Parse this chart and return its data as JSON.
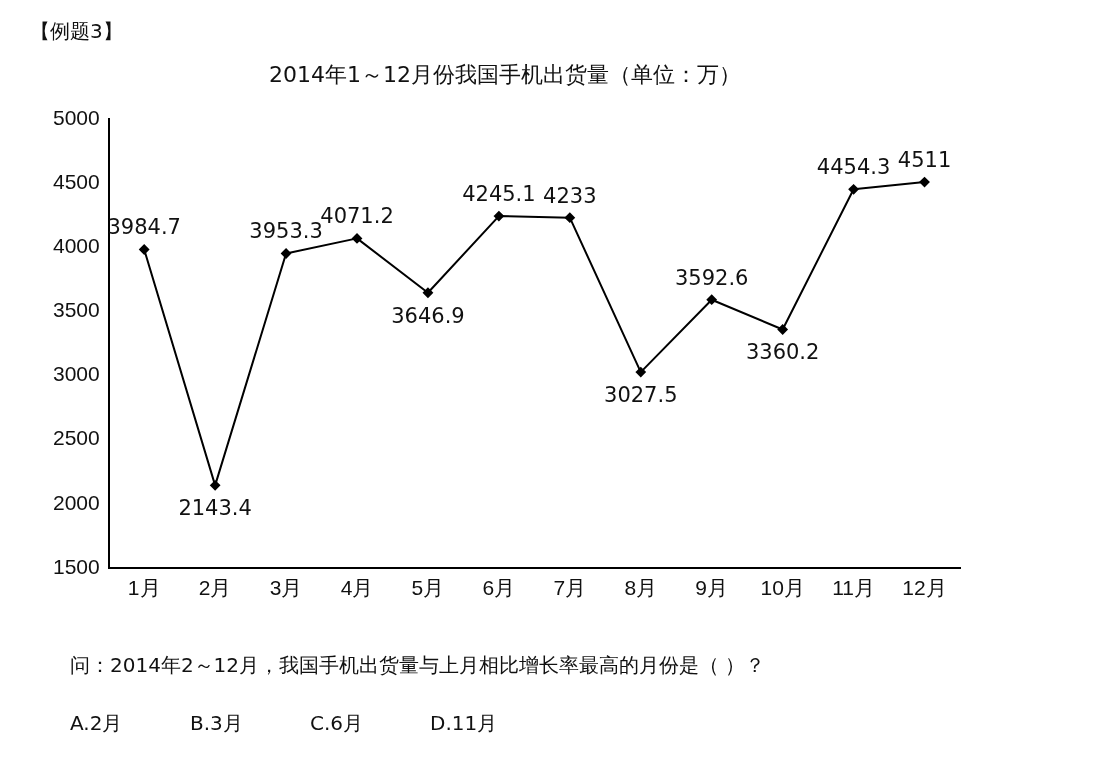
{
  "chart_data": {
    "type": "line",
    "title": "2014年1～12月份我国手机出货量（单位：万）",
    "categories": [
      "1月",
      "2月",
      "3月",
      "4月",
      "5月",
      "6月",
      "7月",
      "8月",
      "9月",
      "10月",
      "11月",
      "12月"
    ],
    "series": [
      {
        "color": "#000000",
        "values": [
          3984.7,
          2143.4,
          3953.3,
          4071.2,
          3646.9,
          4245.1,
          4233,
          3027.5,
          3592.6,
          3360.2,
          4454.3,
          4511
        ]
      }
    ],
    "ylim": [
      1500,
      5000
    ],
    "yticks": [
      1500,
      2000,
      2500,
      3000,
      3500,
      4000,
      4500,
      5000
    ],
    "grid": false,
    "legend": false,
    "marker": "diamond",
    "line_style": "solid",
    "data_labels": true,
    "annotations": [
      "【例题3】",
      "问：2014年2～12月，我国手机出货量与上月相比增长率最高的月份是（  ）？",
      "A.2月",
      "B.3月",
      "C.6月",
      "D.11月"
    ]
  }
}
